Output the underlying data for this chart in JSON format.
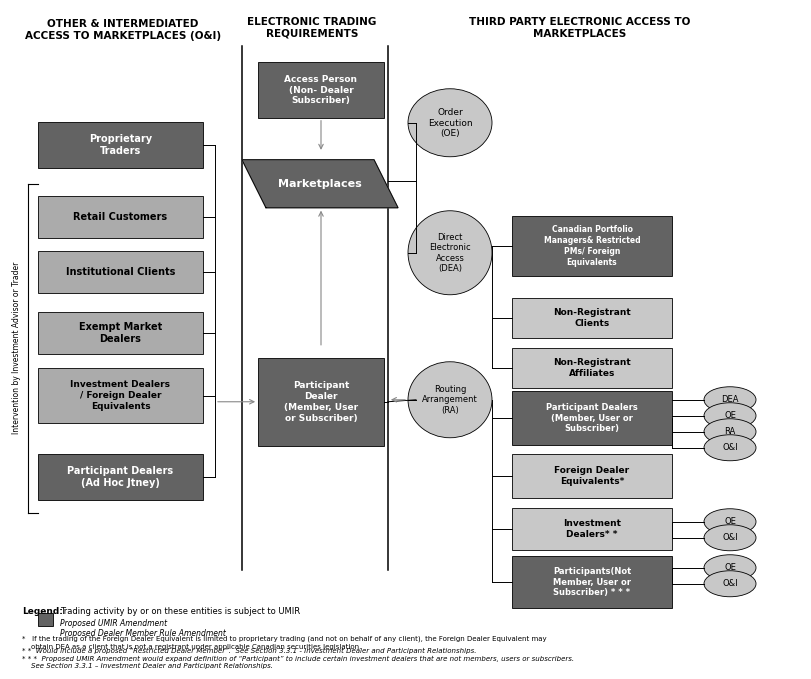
{
  "col1_header": "OTHER & INTERMEDIATED\nACCESS TO MARKETPLACES (O&I)",
  "col2_header": "ELECTRONIC TRADING\nREQUIREMENTS",
  "col3_header": "THIRD PARTY ELECTRONIC ACCESS TO\nMARKETPLACES",
  "dark_gray": "#636363",
  "light_gray": "#ABABAB",
  "very_light_gray": "#C8C8C8",
  "white": "#FFFFFF",
  "black": "#000000",
  "mid_gray": "#888888",
  "legend_text1": "Trading activity by or on these entities is subject to UMIR",
  "legend_text2": "Proposed UMIR Amendment",
  "legend_text3": "Proposed Dealer Member Rule Amendment",
  "fn1": "*   If the trading of the Foreign Dealer Equivalent is limited to proprietary trading (and not on behalf of any client), the Foreign Dealer Equivalent may\n    obtain DEA as a client that is not a registrant under applicable Canadian securities legislation.",
  "fn2": "* *  Would include a proposed “Restricted Dealer Member”.  See Section 3.3.1 - Investment Dealer and Participant Relationships.",
  "fn3": "* * *  Proposed UMIR Amendment would expand definition of “Participant” to include certain investment dealers that are not members, users or subscribers.\n    See Section 3.3.1 – Investment Dealer and Participant Relationships."
}
